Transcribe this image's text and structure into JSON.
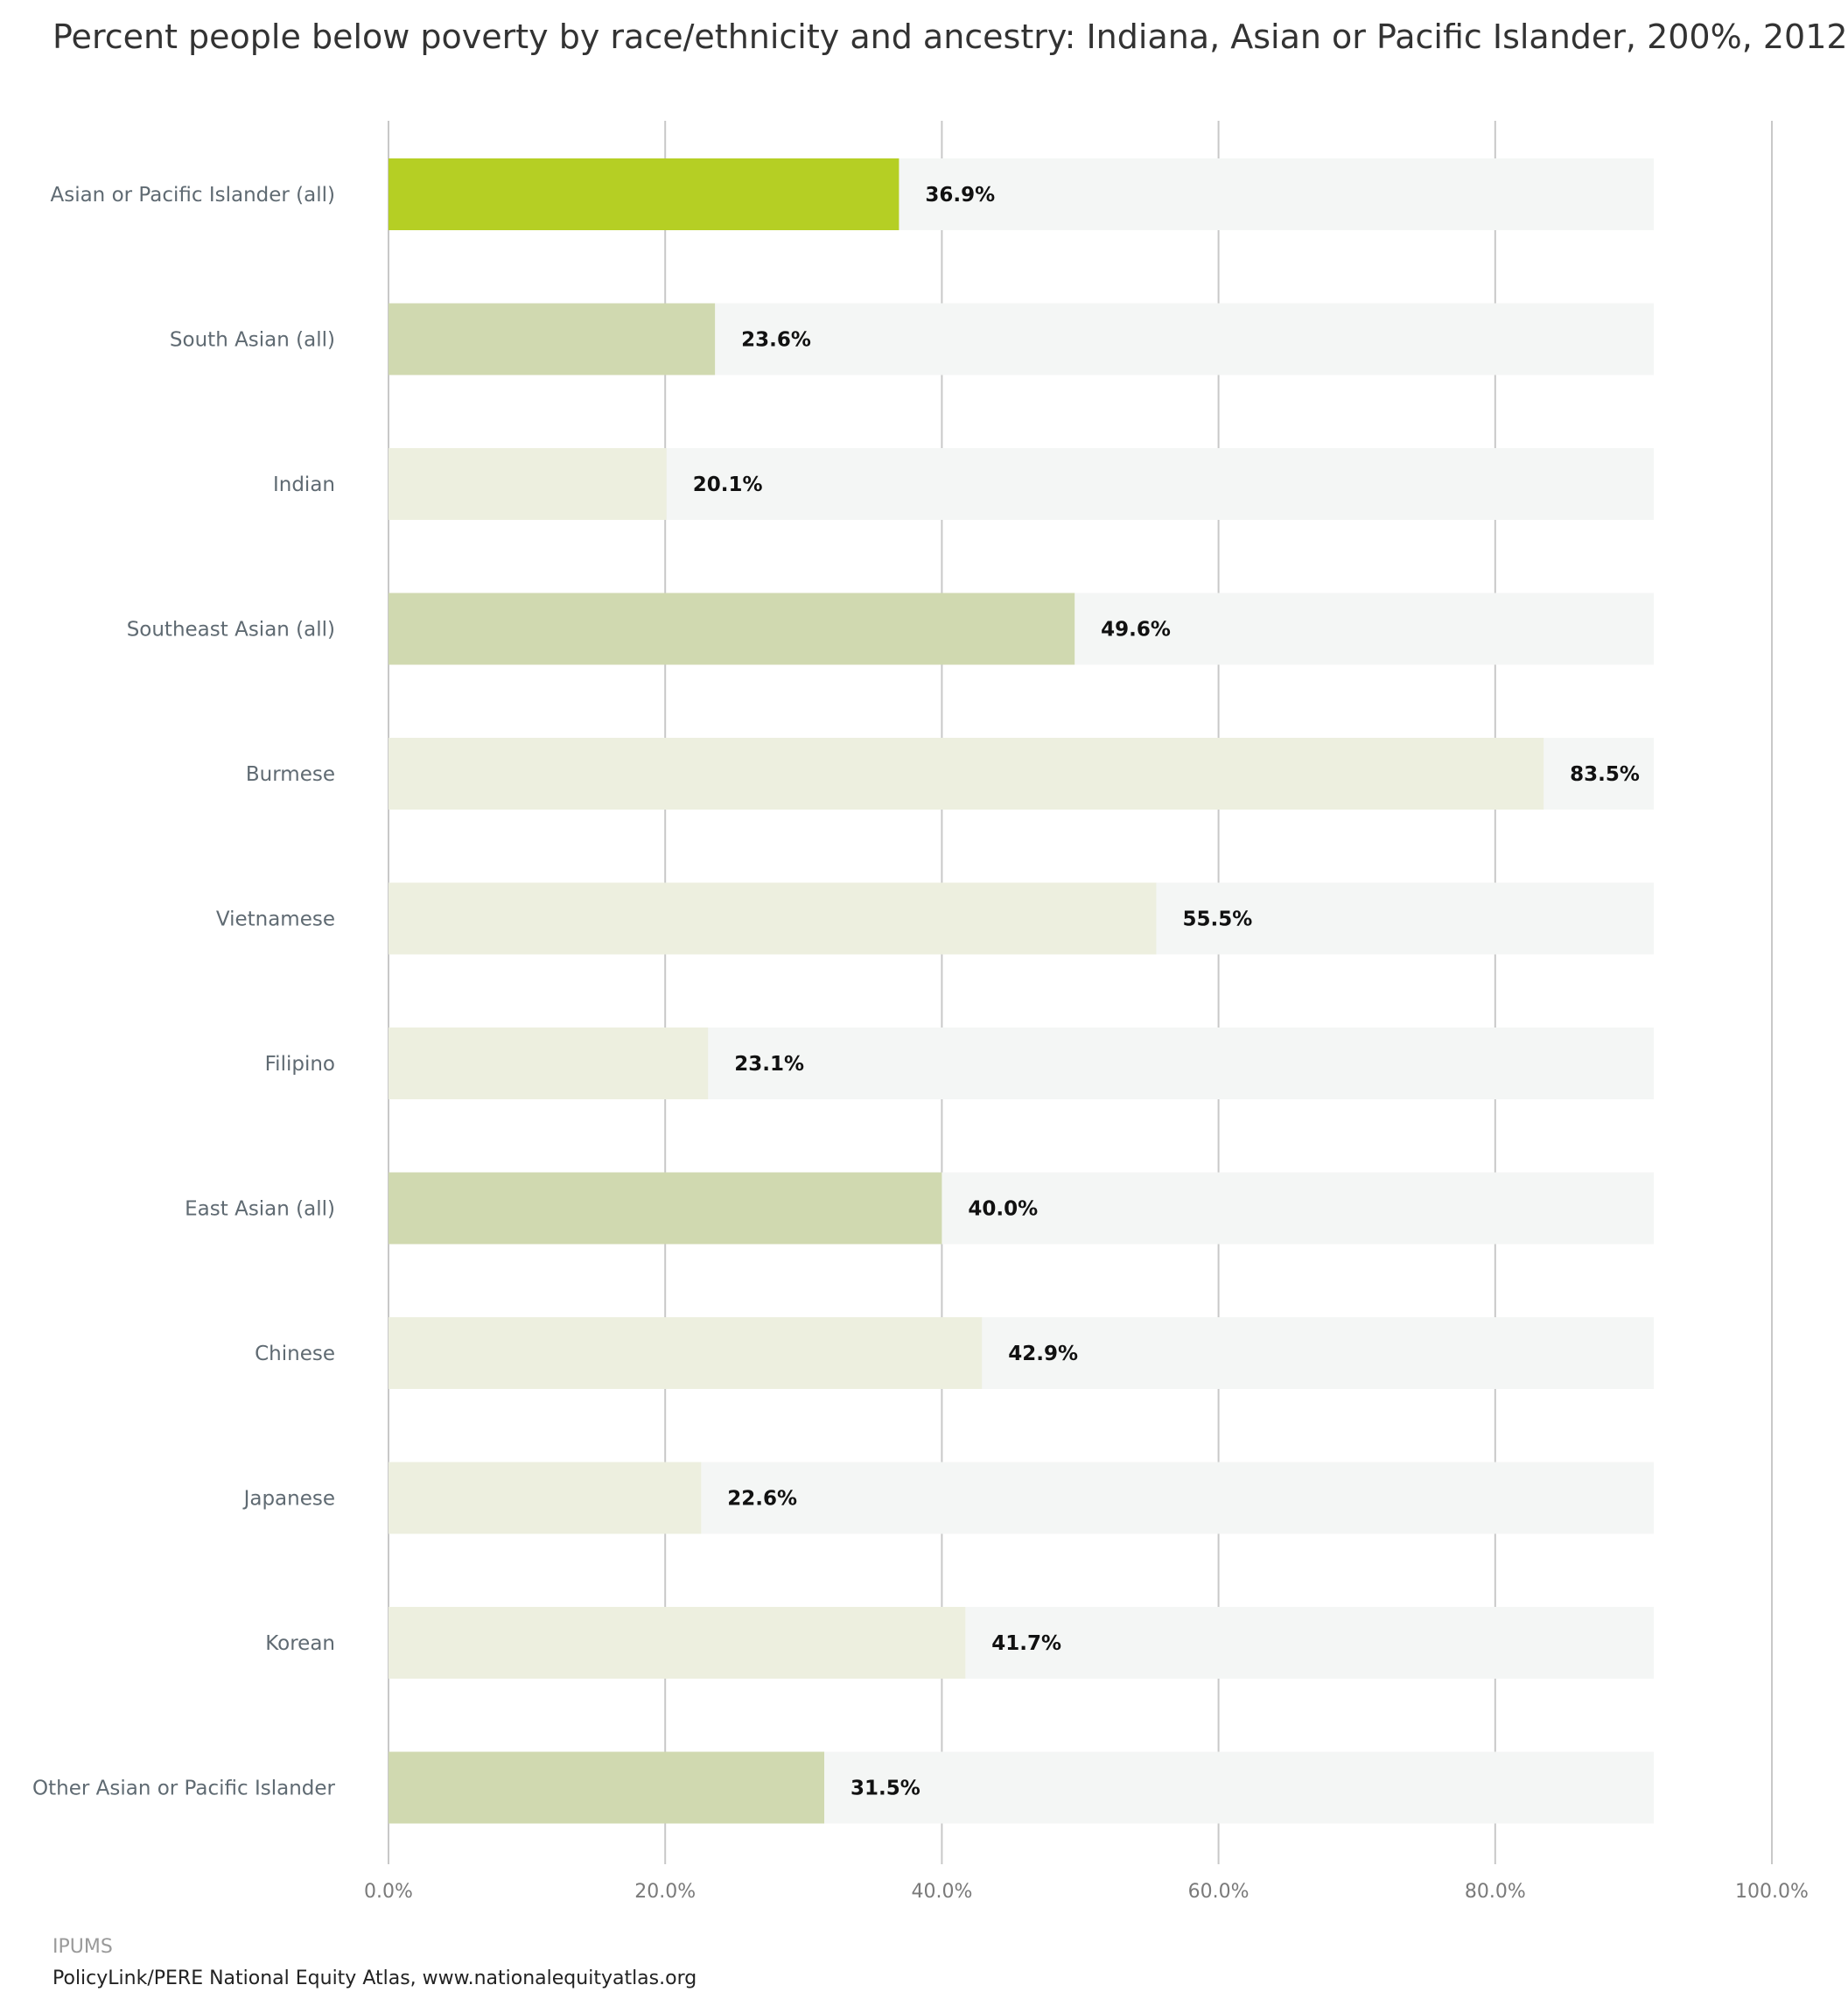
{
  "chart_data": {
    "type": "bar",
    "orientation": "horizontal",
    "title": "Percent people below poverty by race/ethnicity and ancestry: Indiana, Asian or Pacific Islander, 200%, 2012",
    "xlabel": "",
    "ylabel": "",
    "xlim": [
      0,
      100
    ],
    "x_ticks": [
      "0.0%",
      "20.0%",
      "40.0%",
      "60.0%",
      "80.0%",
      "100.0%"
    ],
    "x_tick_values": [
      0,
      20,
      40,
      60,
      80,
      100
    ],
    "grid": true,
    "legend": "none",
    "categories": [
      "Asian or Pacific Islander (all)",
      "South Asian (all)",
      "Indian",
      "Southeast Asian (all)",
      "Burmese",
      "Vietnamese",
      "Filipino",
      "East Asian (all)",
      "Chinese",
      "Japanese",
      "Korean",
      "Other Asian or Pacific Islander"
    ],
    "values": [
      36.9,
      23.6,
      20.1,
      49.6,
      83.5,
      55.5,
      23.1,
      40.0,
      42.9,
      22.6,
      41.7,
      31.5
    ],
    "value_labels": [
      "36.9%",
      "23.6%",
      "20.1%",
      "49.6%",
      "83.5%",
      "55.5%",
      "23.1%",
      "40.0%",
      "42.9%",
      "22.6%",
      "41.7%",
      "31.5%"
    ],
    "levels": [
      "total",
      "group",
      "subgroup",
      "group",
      "subgroup",
      "subgroup",
      "subgroup",
      "group",
      "subgroup",
      "subgroup",
      "subgroup",
      "group"
    ]
  },
  "colors": {
    "total": "#b5cf24",
    "group": "#d0d9b0",
    "subgroup": "#edefdf",
    "track": "#f4f6f5",
    "grid": "#c8c8c8",
    "category_label": "#5f6a72",
    "tick_label": "#7a7a7a",
    "value_label": "#111111"
  },
  "source": {
    "label": "IPUMS",
    "atlas": "PolicyLink/PERE National Equity Atlas, www.nationalequityatlas.org"
  }
}
